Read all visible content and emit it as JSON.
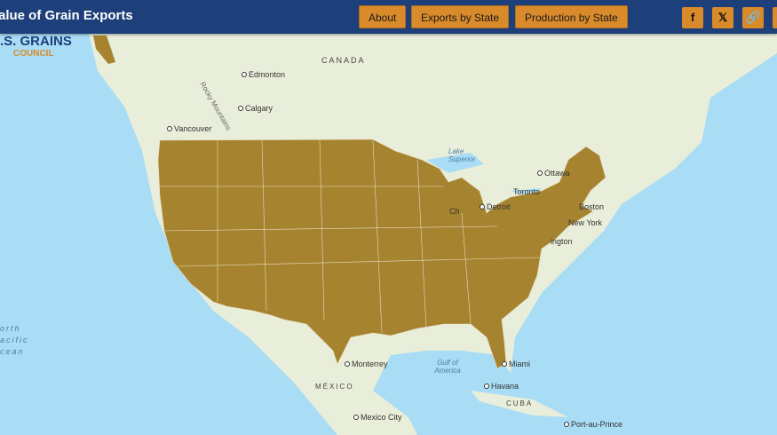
{
  "header": {
    "title": "alue of Grain Exports",
    "buttons": [
      "About",
      "Exports by State",
      "Production by State"
    ],
    "icons": [
      {
        "name": "facebook-icon",
        "glyph": "f"
      },
      {
        "name": "x-icon",
        "glyph": "𝕏"
      },
      {
        "name": "link-icon",
        "glyph": "🔗"
      }
    ]
  },
  "logo": {
    "line1": ".S. GRAINS",
    "line2": "COUNCIL"
  },
  "colors": {
    "header": "#1d3f7a",
    "button": "#d98a2a",
    "highlight": "#a6832f"
  },
  "map": {
    "labels": {
      "edmonton": "Edmonton",
      "canada": "CANADA",
      "calgary": "Calgary",
      "rocky": "Rocky Mountains",
      "vancouver": "Vancouver",
      "superior": "Lake Superior",
      "ottawa": "Ottawa",
      "toronto": "Toronto",
      "detroit": "Detroit",
      "chicago": "Ch",
      "boston": "Boston",
      "newyork": "New York",
      "washington": "ington",
      "miami": "Miami",
      "havana": "Havana",
      "cuba": "CUBA",
      "gulf": "Gulf of America",
      "monterrey": "Monterrey",
      "mexico": "MÉXICO",
      "mexicocity": "Mexico City",
      "portauprince": "Port-au-Prince",
      "pacific1": "orth",
      "pacific2": "acific",
      "pacific3": "cean"
    }
  }
}
